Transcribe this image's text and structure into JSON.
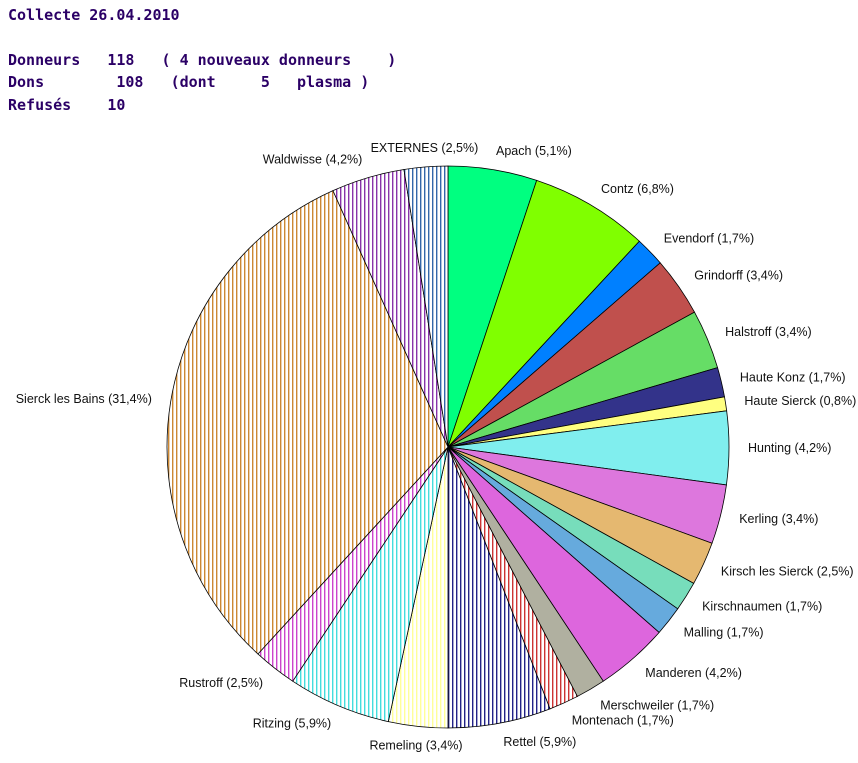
{
  "header": {
    "title": "Collecte 26.04.2010",
    "donneurs_label": "Donneurs",
    "donneurs_value": "118",
    "donneurs_note": "( 4 nouveaux donneurs    )",
    "dons_label": "Dons",
    "dons_value": "108",
    "dons_note": "(dont     5   plasma )",
    "refuses_label": "Refusés",
    "refuses_value": "10"
  },
  "chart_data": {
    "type": "pie",
    "title": "",
    "start": "12 o'clock",
    "direction": "clockwise",
    "slices": [
      {
        "label": "Apach (5,1%)",
        "value": 5.1,
        "color": "#00ff80",
        "fill": "solid"
      },
      {
        "label": "Contz (6,8%)",
        "value": 6.8,
        "color": "#80ff00",
        "fill": "solid"
      },
      {
        "label": "Evendorf (1,7%)",
        "value": 1.7,
        "color": "#0080ff",
        "fill": "solid"
      },
      {
        "label": "Grindorff (3,4%)",
        "value": 3.4,
        "color": "#c0504d",
        "fill": "solid"
      },
      {
        "label": "Halstroff (3,4%)",
        "value": 3.4,
        "color": "#66dd66",
        "fill": "solid"
      },
      {
        "label": "Haute Konz (1,7%)",
        "value": 1.7,
        "color": "#33338a",
        "fill": "solid"
      },
      {
        "label": "Haute Sierck (0,8%)",
        "value": 0.8,
        "color": "#ffff80",
        "fill": "solid"
      },
      {
        "label": "Hunting (4,2%)",
        "value": 4.2,
        "color": "#80eeee",
        "fill": "solid"
      },
      {
        "label": "Kerling (3,4%)",
        "value": 3.4,
        "color": "#dd77dd",
        "fill": "solid"
      },
      {
        "label": "Kirsch les Sierck (2,5%)",
        "value": 2.5,
        "color": "#e5b870",
        "fill": "solid"
      },
      {
        "label": "Kirschnaumen (1,7%)",
        "value": 1.7,
        "color": "#77ddbb",
        "fill": "solid"
      },
      {
        "label": "Malling (1,7%)",
        "value": 1.7,
        "color": "#66aadd",
        "fill": "solid"
      },
      {
        "label": "Manderen (4,2%)",
        "value": 4.2,
        "color": "#dd66dd",
        "fill": "solid"
      },
      {
        "label": "Merschweiler (1,7%)",
        "value": 1.7,
        "color": "#b0b0a0",
        "fill": "solid"
      },
      {
        "label": "Montenach (1,7%)",
        "value": 1.7,
        "color": "#cc3333",
        "fill": "striped"
      },
      {
        "label": "Rettel (5,9%)",
        "value": 5.9,
        "color": "#222288",
        "fill": "striped"
      },
      {
        "label": "Remeling (3,4%)",
        "value": 3.4,
        "color": "#ffff99",
        "fill": "striped"
      },
      {
        "label": "Ritzing (5,9%)",
        "value": 5.9,
        "color": "#44dddd",
        "fill": "striped"
      },
      {
        "label": "Rustroff (2,5%)",
        "value": 2.5,
        "color": "#cc44cc",
        "fill": "striped"
      },
      {
        "label": "Sierck les Bains (31,4%)",
        "value": 31.4,
        "color": "#cc8833",
        "fill": "striped"
      },
      {
        "label": "Waldwisse (4,2%)",
        "value": 4.2,
        "color": "#8833aa",
        "fill": "striped"
      },
      {
        "label": "EXTERNES (2,5%)",
        "value": 2.5,
        "color": "#3366aa",
        "fill": "striped"
      }
    ]
  }
}
